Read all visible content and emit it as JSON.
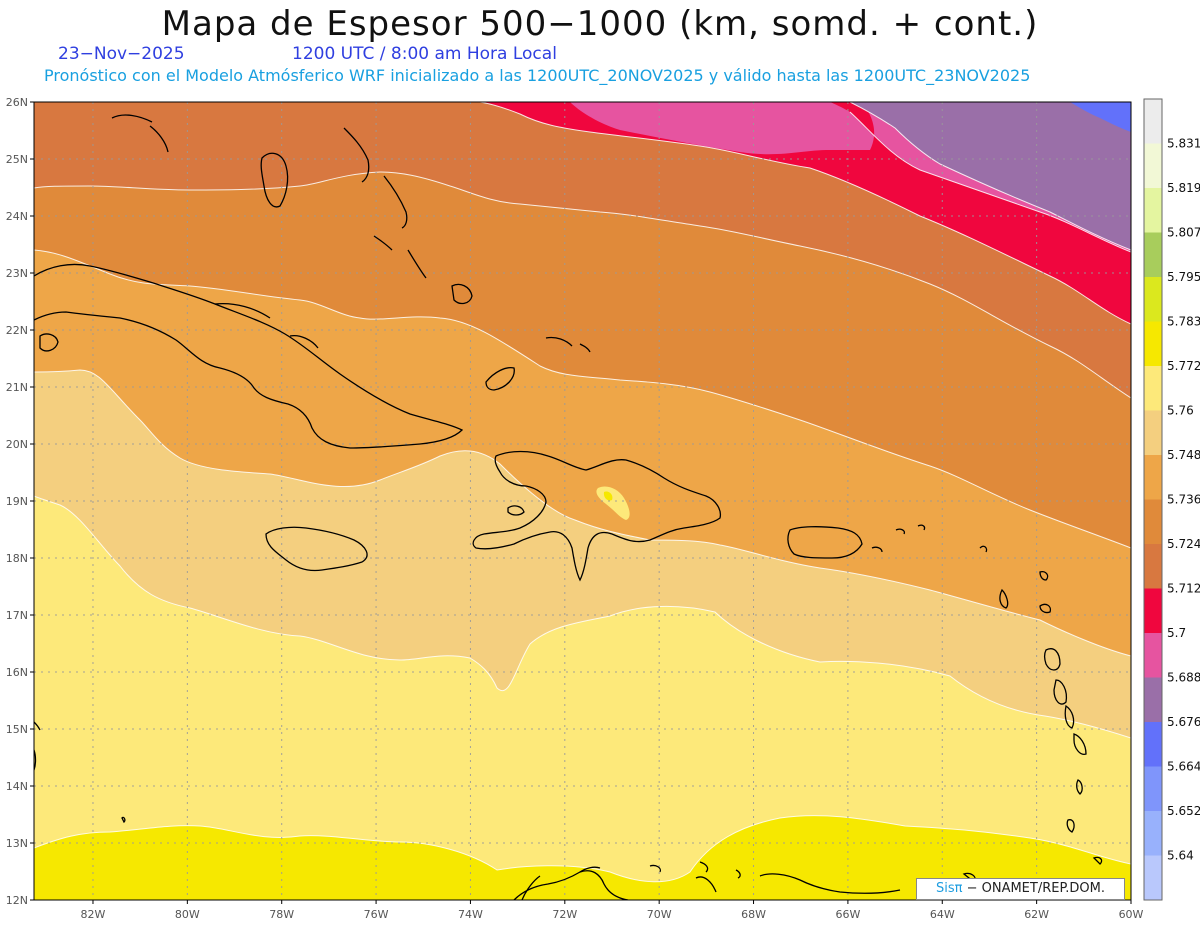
{
  "header": {
    "title": "Mapa de Espesor 500−1000 (km, somd. + cont.)",
    "date": "23−Nov−2025",
    "time": "1200 UTC / 8:00 am Hora Local",
    "subtitle": "Pronóstico con el Modelo Atmósferico WRF inicializado a las 1200UTC_20NOV2025 y válido hasta las  1200UTC_23NOV2025"
  },
  "axes": {
    "lat_labels": [
      "26N",
      "25N",
      "24N",
      "23N",
      "22N",
      "21N",
      "20N",
      "19N",
      "18N",
      "17N",
      "16N",
      "15N",
      "14N",
      "13N",
      "12N"
    ],
    "lon_labels": [
      "82W",
      "80W",
      "78W",
      "76W",
      "74W",
      "72W",
      "70W",
      "68W",
      "66W",
      "64W",
      "62W",
      "60W"
    ],
    "lat_range": [
      12,
      26
    ],
    "lon_range": [
      -83.25,
      -60
    ]
  },
  "colorbar": {
    "labels": [
      "5.831",
      "5.819",
      "5.807",
      "5.795",
      "5.783",
      "5.772",
      "5.76",
      "5.748",
      "5.736",
      "5.724",
      "5.712",
      "5.7",
      "5.688",
      "5.676",
      "5.664",
      "5.652",
      "5.64"
    ],
    "colors": [
      "#ececec",
      "#f2f8d6",
      "#e4f5a0",
      "#a8cd5c",
      "#dbe81e",
      "#f6e800",
      "#fde97a",
      "#f4cf7f",
      "#eea648",
      "#e08a3a",
      "#d87840",
      "#f0063e",
      "#e654a0",
      "#9a6fa8",
      "#6271fa",
      "#7f95fb",
      "#98b1fc",
      "#b9c8fc"
    ]
  },
  "fill_colors": {
    "yellow": "#f6e800",
    "light_yellow": "#fde97a",
    "tan": "#f4cf7f",
    "orange_light": "#eea648",
    "orange": "#e08a3a",
    "orange_dark": "#d87840",
    "red": "#f0063e",
    "pink": "#e654a0",
    "purple": "#9a6fa8",
    "blue": "#6271fa"
  },
  "credit": {
    "brand": "Sisπ",
    "text": " − ONAMET/REP.DOM."
  }
}
